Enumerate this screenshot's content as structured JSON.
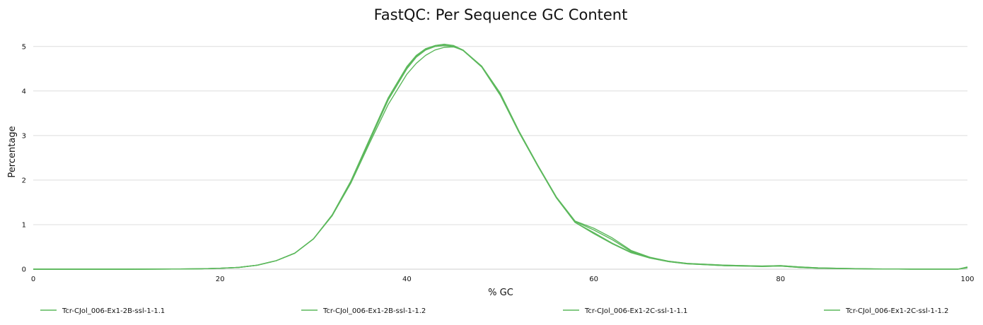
{
  "chart_data": {
    "type": "line",
    "title": "FastQC: Per Sequence GC Content",
    "xlabel": "% GC",
    "ylabel": "Percentage",
    "xlim": [
      0,
      100
    ],
    "ylim": [
      0,
      5.25
    ],
    "x_ticks": [
      0,
      20,
      40,
      60,
      80,
      100
    ],
    "y_ticks": [
      0,
      1,
      2,
      3,
      4,
      5
    ],
    "grid": true,
    "legend_position": "bottom",
    "series_color": "#5cb85c",
    "x": [
      0,
      5,
      10,
      15,
      18,
      20,
      22,
      24,
      26,
      28,
      30,
      32,
      34,
      36,
      38,
      40,
      41,
      42,
      43,
      44,
      45,
      46,
      48,
      50,
      52,
      54,
      56,
      58,
      60,
      62,
      64,
      66,
      68,
      70,
      72,
      74,
      76,
      78,
      80,
      82,
      84,
      86,
      88,
      90,
      92,
      94,
      96,
      98,
      99,
      100
    ],
    "series": [
      {
        "name": "Tcr-CJol_006-Ex1-2B-ssl-1-1.1",
        "values": [
          0,
          0,
          0,
          0.003,
          0.01,
          0.02,
          0.04,
          0.09,
          0.19,
          0.36,
          0.68,
          1.22,
          1.98,
          2.92,
          3.85,
          4.55,
          4.8,
          4.95,
          5.02,
          5.05,
          5.02,
          4.92,
          4.55,
          3.92,
          3.08,
          2.32,
          1.6,
          1.05,
          0.82,
          0.58,
          0.38,
          0.25,
          0.17,
          0.12,
          0.1,
          0.08,
          0.07,
          0.06,
          0.07,
          0.04,
          0.02,
          0.015,
          0.01,
          0.005,
          0.003,
          0.002,
          0.001,
          0.001,
          0.002,
          0.05
        ]
      },
      {
        "name": "Tcr-CJol_006-Ex1-2B-ssl-1-1.2",
        "values": [
          0,
          0,
          0,
          0.003,
          0.01,
          0.02,
          0.04,
          0.09,
          0.19,
          0.36,
          0.68,
          1.2,
          1.95,
          2.88,
          3.8,
          4.5,
          4.76,
          4.92,
          5.0,
          5.03,
          5.0,
          4.91,
          4.54,
          3.9,
          3.07,
          2.32,
          1.6,
          1.05,
          0.8,
          0.57,
          0.37,
          0.25,
          0.17,
          0.12,
          0.1,
          0.08,
          0.07,
          0.06,
          0.07,
          0.04,
          0.02,
          0.015,
          0.01,
          0.005,
          0.003,
          0.002,
          0.001,
          0.001,
          0.002,
          0.04
        ]
      },
      {
        "name": "Tcr-CJol_006-Ex1-2C-ssl-1-1.1",
        "values": [
          0,
          0,
          0,
          0.003,
          0.01,
          0.02,
          0.04,
          0.09,
          0.19,
          0.36,
          0.68,
          1.2,
          1.93,
          2.83,
          3.7,
          4.38,
          4.62,
          4.8,
          4.92,
          4.98,
          4.99,
          4.92,
          4.56,
          3.95,
          3.1,
          2.34,
          1.62,
          1.08,
          0.92,
          0.7,
          0.42,
          0.27,
          0.18,
          0.13,
          0.11,
          0.09,
          0.08,
          0.07,
          0.08,
          0.05,
          0.03,
          0.02,
          0.012,
          0.006,
          0.003,
          0.002,
          0.001,
          0.001,
          0.002,
          0.03
        ]
      },
      {
        "name": "Tcr-CJol_006-Ex1-2C-ssl-1-1.2",
        "values": [
          0,
          0,
          0,
          0.003,
          0.01,
          0.02,
          0.04,
          0.09,
          0.19,
          0.36,
          0.68,
          1.21,
          1.96,
          2.9,
          3.82,
          4.52,
          4.78,
          4.93,
          5.0,
          5.02,
          5.0,
          4.91,
          4.55,
          3.91,
          3.08,
          2.33,
          1.61,
          1.07,
          0.88,
          0.66,
          0.4,
          0.26,
          0.18,
          0.13,
          0.11,
          0.09,
          0.08,
          0.07,
          0.08,
          0.05,
          0.03,
          0.02,
          0.012,
          0.006,
          0.003,
          0.002,
          0.001,
          0.001,
          0.002,
          0.04
        ]
      }
    ]
  }
}
